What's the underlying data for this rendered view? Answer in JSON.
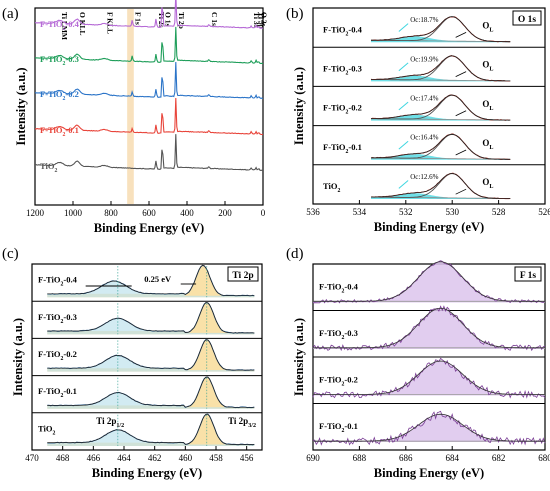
{
  "chart_data": [
    {
      "panel": "(a)",
      "type": "line",
      "xlabel": "Binding Energy (eV)",
      "ylabel": "Intensity (a.u.)",
      "xlim": [
        1200,
        0
      ],
      "xticks": [
        1200,
        1000,
        800,
        600,
        400,
        200,
        0
      ],
      "highlight_band": [
        715,
        680
      ],
      "peak_labels": [
        "Ti LMM",
        "O KLL",
        "F KLL",
        "F 1s",
        "Ti 2s",
        "O 1s",
        "Ti 2p",
        "C 1s",
        "Ti 3s",
        "O 2s",
        "Ti 3p"
      ],
      "peak_positions": [
        1075,
        980,
        835,
        688,
        563,
        530,
        459,
        285,
        62,
        23,
        37
      ],
      "series": [
        {
          "name": "TiO2",
          "label_main": "TiO",
          "label_sub": "2",
          "label_tail": "",
          "color": "#555555"
        },
        {
          "name": "F-TiO2-0.1",
          "label_main": "F-TiO",
          "label_sub": "2",
          "label_tail": "-0.1",
          "color": "#e8443a"
        },
        {
          "name": "F-TiO2-0.2",
          "label_main": "F-TiO",
          "label_sub": "2",
          "label_tail": "-0.2",
          "color": "#2b74c8"
        },
        {
          "name": "F-TiO2-0.3",
          "label_main": "F-TiO",
          "label_sub": "2",
          "label_tail": "-0.3",
          "color": "#1f9e5a"
        },
        {
          "name": "F-TiO2-0.4",
          "label_main": "F-TiO",
          "label_sub": "2",
          "label_tail": "-0.4",
          "color": "#b66ad6"
        }
      ]
    },
    {
      "panel": "(b)",
      "type": "line",
      "title": "O 1s",
      "xlabel": "Binding Energy (eV)",
      "ylabel": "Intensity (a.u.)",
      "xlim": [
        536,
        526
      ],
      "xticks": [
        536,
        534,
        532,
        530,
        528,
        526
      ],
      "peak_OL": 530.0,
      "peak_OC": 531.6,
      "ol_label": "O",
      "ol_sub": "L",
      "series": [
        {
          "label_main": "F-TiO",
          "label_sub": "2",
          "label_tail": "-0.4",
          "oc_label": "Oc:18.7%"
        },
        {
          "label_main": "F-TiO",
          "label_sub": "2",
          "label_tail": "-0.3",
          "oc_label": "Oc:19.9%"
        },
        {
          "label_main": "F-TiO",
          "label_sub": "2",
          "label_tail": "-0.2",
          "oc_label": "Oc:17.4%"
        },
        {
          "label_main": "F-TiO",
          "label_sub": "2",
          "label_tail": "-0.1",
          "oc_label": "Oc:16.4%"
        },
        {
          "label_main": "TiO",
          "label_sub": "2",
          "label_tail": "",
          "oc_label": "Oc:12.6%"
        }
      ]
    },
    {
      "panel": "(c)",
      "type": "line",
      "title": "Ti 2p",
      "xlabel": "Binding Energy (eV)",
      "ylabel": "Intensity (a.u.)",
      "xlim": [
        470,
        455
      ],
      "xticks": [
        470,
        468,
        466,
        464,
        462,
        460,
        458,
        456
      ],
      "peak_ti2p32": 458.6,
      "peak_ti2p12": 464.4,
      "shift_label": "0.25 eV",
      "ti12_main": "Ti 2p",
      "ti12_sub": "1/2",
      "ti32_main": "Ti 2p",
      "ti32_sub": "3/2",
      "series": [
        {
          "label_main": "F-TiO",
          "label_sub": "2",
          "label_tail": "-0.4"
        },
        {
          "label_main": "F-TiO",
          "label_sub": "2",
          "label_tail": "-0.3"
        },
        {
          "label_main": "F-TiO",
          "label_sub": "2",
          "label_tail": "-0.2"
        },
        {
          "label_main": "F-TiO",
          "label_sub": "2",
          "label_tail": "-0.1"
        },
        {
          "label_main": "TiO",
          "label_sub": "2",
          "label_tail": ""
        }
      ]
    },
    {
      "panel": "(d)",
      "type": "line",
      "title": "F 1s",
      "xlabel": "Binding Energy (eV)",
      "ylabel": "Intensity (a.u.)",
      "xlim": [
        690,
        680
      ],
      "xticks": [
        690,
        688,
        686,
        684,
        682,
        680
      ],
      "peak_F1s": 684.5,
      "series": [
        {
          "label_main": "F-TiO",
          "label_sub": "2",
          "label_tail": "-0.4"
        },
        {
          "label_main": "F-TiO",
          "label_sub": "2",
          "label_tail": "-0.3"
        },
        {
          "label_main": "F-TiO",
          "label_sub": "2",
          "label_tail": "-0.2"
        },
        {
          "label_main": "F-TiO",
          "label_sub": "2",
          "label_tail": "-0.1"
        }
      ]
    }
  ]
}
